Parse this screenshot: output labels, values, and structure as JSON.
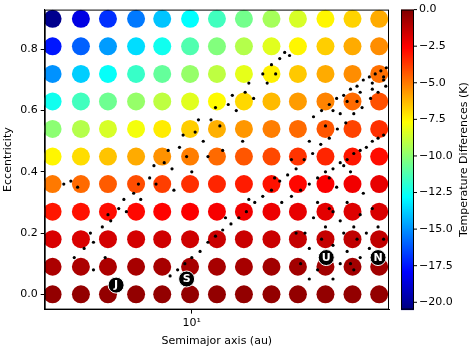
{
  "chart_data": {
    "type": "scatter",
    "x_label": "Semimajor axis (au)",
    "y_label": "Eccentricity",
    "log": "x",
    "grid": false,
    "xlim": [
      4.2,
      32
    ],
    "xticks": [
      {
        "value": 10,
        "label": "10¹"
      }
    ],
    "ylim": [
      -0.05,
      0.93
    ],
    "yticks": [
      {
        "value": 0,
        "label": "0.0"
      },
      {
        "value": 0.2,
        "label": "0.2"
      },
      {
        "value": 0.4,
        "label": "0.4"
      },
      {
        "value": 0.6,
        "label": "0.6"
      },
      {
        "value": 0.8,
        "label": "0.8"
      }
    ],
    "heatmap": {
      "marker": "circle",
      "x": [
        4.4,
        5.2,
        6.1,
        7.2,
        8.4,
        9.9,
        11.6,
        13.6,
        16,
        18.7,
        22,
        25.8,
        30.2
      ],
      "y": [
        0,
        0.09,
        0.18,
        0.27,
        0.36,
        0.45,
        0.54,
        0.63,
        0.72,
        0.81,
        0.9
      ],
      "values": [
        [
          -0.4,
          -0.4,
          -0.4,
          -0.4,
          -0.4,
          -0.4,
          -0.4,
          -0.4,
          -0.4,
          -0.4,
          -0.4,
          -0.4,
          -0.4
        ],
        [
          -0.9,
          -0.9,
          -0.9,
          -0.8,
          -0.8,
          -0.8,
          -0.8,
          -0.8,
          -0.7,
          -0.7,
          -0.7,
          -0.7,
          -0.7
        ],
        [
          -1.8,
          -1.8,
          -1.7,
          -1.7,
          -1.6,
          -1.6,
          -1.5,
          -1.5,
          -1.5,
          -1.4,
          -1.4,
          -1.3,
          -1.3
        ],
        [
          -3.0,
          -2.9,
          -2.8,
          -2.7,
          -2.6,
          -2.5,
          -2.4,
          -2.3,
          -2.2,
          -2.1,
          -2.0,
          -1.9,
          -1.8
        ],
        [
          -5.0,
          -4.7,
          -4.4,
          -4.1,
          -3.8,
          -3.5,
          -3.3,
          -3.1,
          -2.9,
          -2.7,
          -2.5,
          -2.3,
          -2.1
        ],
        [
          -7.5,
          -7.0,
          -6.5,
          -6.0,
          -5.5,
          -5.1,
          -4.7,
          -4.3,
          -4.0,
          -3.6,
          -3.3,
          -3.0,
          -2.8
        ],
        [
          -10.0,
          -9.2,
          -8.5,
          -7.9,
          -7.3,
          -6.7,
          -6.1,
          -5.6,
          -5.1,
          -4.7,
          -4.3,
          -3.9,
          -3.5
        ],
        [
          -12.5,
          -11.5,
          -10.6,
          -9.8,
          -9.0,
          -8.3,
          -7.6,
          -6.9,
          -6.3,
          -5.7,
          -5.2,
          -4.7,
          -4.2
        ],
        [
          -15.0,
          -13.8,
          -12.7,
          -11.7,
          -10.8,
          -9.8,
          -9.0,
          -8.2,
          -7.4,
          -6.6,
          -6.0,
          -5.4,
          -4.8
        ],
        [
          -17.5,
          -16.0,
          -14.8,
          -13.5,
          -12.5,
          -11.2,
          -10.2,
          -9.2,
          -8.3,
          -7.5,
          -6.7,
          -6.0,
          -5.4
        ],
        [
          -20.2,
          -18.5,
          -17.0,
          -15.5,
          -14.0,
          -12.8,
          -11.5,
          -10.5,
          -9.5,
          -8.5,
          -7.5,
          -6.8,
          -6.0
        ]
      ],
      "colorbar": {
        "label": "Temperature Differences (K)",
        "lim": [
          -20.5,
          0
        ],
        "ticks": [
          {
            "value": 0,
            "label": "0.0"
          },
          {
            "value": -2.5,
            "label": "−2.5"
          },
          {
            "value": -5,
            "label": "−5.0"
          },
          {
            "value": -7.5,
            "label": "−7.5"
          },
          {
            "value": -10,
            "label": "−10.0"
          },
          {
            "value": -12.5,
            "label": "−12.5"
          },
          {
            "value": -15,
            "label": "−15.0"
          },
          {
            "value": -17.5,
            "label": "−17.5"
          },
          {
            "value": -20,
            "label": "−20.0"
          }
        ]
      }
    },
    "series": [
      {
        "color": "#000000",
        "marker": "circle",
        "points": [
          [
            4.7,
            0.36
          ],
          [
            4.9,
            0.37
          ],
          [
            5.1,
            0.35
          ],
          [
            5.0,
            0.12
          ],
          [
            5.3,
            0.15
          ],
          [
            5.5,
            0.2
          ],
          [
            5.6,
            0.17
          ],
          [
            5.9,
            0.22
          ],
          [
            6.1,
            0.26
          ],
          [
            6.2,
            0.24
          ],
          [
            6.5,
            0.28
          ],
          [
            6.7,
            0.31
          ],
          [
            6.8,
            0.27
          ],
          [
            7.1,
            0.33
          ],
          [
            7.3,
            0.36
          ],
          [
            7.4,
            0.31
          ],
          [
            7.8,
            0.38
          ],
          [
            8.0,
            0.42
          ],
          [
            8.1,
            0.36
          ],
          [
            8.5,
            0.43
          ],
          [
            8.7,
            0.47
          ],
          [
            8.9,
            0.41
          ],
          [
            9.3,
            0.48
          ],
          [
            9.5,
            0.52
          ],
          [
            9.7,
            0.45
          ],
          [
            10.2,
            0.53
          ],
          [
            10.4,
            0.57
          ],
          [
            10.7,
            0.5
          ],
          [
            11.2,
            0.57
          ],
          [
            11.5,
            0.61
          ],
          [
            11.8,
            0.55
          ],
          [
            12.4,
            0.62
          ],
          [
            12.7,
            0.65
          ],
          [
            13.0,
            0.6
          ],
          [
            13.7,
            0.66
          ],
          [
            14.0,
            0.69
          ],
          [
            14.4,
            0.64
          ],
          [
            15.2,
            0.72
          ],
          [
            15.6,
            0.69
          ],
          [
            16.0,
            0.75
          ],
          [
            16.4,
            0.72
          ],
          [
            16.8,
            0.77
          ],
          [
            17.3,
            0.79
          ],
          [
            17.8,
            0.78
          ],
          [
            12.0,
            0.47
          ],
          [
            11.0,
            0.45
          ],
          [
            10.0,
            0.4
          ],
          [
            9.0,
            0.34
          ],
          [
            13.5,
            0.5
          ],
          [
            5.6,
            0.08
          ],
          [
            6.0,
            0.12
          ],
          [
            6.3,
            0.05
          ],
          [
            8.8,
            0.06
          ],
          [
            9.2,
            0.08
          ],
          [
            9.6,
            0.1
          ],
          [
            10.0,
            0.12
          ],
          [
            10.5,
            0.14
          ],
          [
            11.0,
            0.17
          ],
          [
            11.5,
            0.19
          ],
          [
            12.0,
            0.21
          ],
          [
            12.6,
            0.23
          ],
          [
            13.2,
            0.25
          ],
          [
            13.8,
            0.27
          ],
          [
            14.5,
            0.3
          ],
          [
            15.2,
            0.32
          ],
          [
            16.0,
            0.34
          ],
          [
            16.8,
            0.37
          ],
          [
            17.6,
            0.39
          ],
          [
            18.5,
            0.41
          ],
          [
            19.4,
            0.44
          ],
          [
            20.4,
            0.46
          ],
          [
            21.4,
            0.49
          ],
          [
            22.5,
            0.51
          ],
          [
            23.6,
            0.54
          ],
          [
            24.8,
            0.56
          ],
          [
            26.0,
            0.59
          ],
          [
            27.3,
            0.61
          ],
          [
            28.7,
            0.64
          ],
          [
            30.0,
            0.66
          ],
          [
            31.4,
            0.68
          ],
          [
            12.2,
            0.25
          ],
          [
            14.0,
            0.31
          ],
          [
            16.3,
            0.38
          ],
          [
            18.0,
            0.44
          ],
          [
            20.0,
            0.5
          ],
          [
            22.0,
            0.55
          ],
          [
            24.0,
            0.59
          ],
          [
            26.5,
            0.63
          ],
          [
            29.0,
            0.67
          ],
          [
            31.0,
            0.71
          ],
          [
            20.5,
            0.58
          ],
          [
            21.5,
            0.6
          ],
          [
            22.5,
            0.62
          ],
          [
            23.5,
            0.64
          ],
          [
            24.5,
            0.65
          ],
          [
            25.5,
            0.67
          ],
          [
            26.5,
            0.68
          ],
          [
            27.5,
            0.7
          ],
          [
            28.5,
            0.71
          ],
          [
            29.5,
            0.72
          ],
          [
            30.5,
            0.73
          ],
          [
            31.5,
            0.74
          ],
          [
            23,
            0.6
          ],
          [
            25,
            0.63
          ],
          [
            27,
            0.66
          ],
          [
            29,
            0.69
          ],
          [
            31,
            0.7
          ],
          [
            17,
            0.3
          ],
          [
            18,
            0.32
          ],
          [
            19,
            0.34
          ],
          [
            20,
            0.36
          ],
          [
            21,
            0.38
          ],
          [
            22,
            0.4
          ],
          [
            23,
            0.41
          ],
          [
            24,
            0.43
          ],
          [
            25,
            0.44
          ],
          [
            26,
            0.46
          ],
          [
            27,
            0.47
          ],
          [
            28,
            0.48
          ],
          [
            29,
            0.5
          ],
          [
            30,
            0.51
          ],
          [
            31,
            0.52
          ],
          [
            19,
            0.1
          ],
          [
            19.5,
            0.2
          ],
          [
            20,
            0.15
          ],
          [
            20.5,
            0.25
          ],
          [
            21,
            0.08
          ],
          [
            21,
            0.3
          ],
          [
            21.5,
            0.18
          ],
          [
            22,
            0.12
          ],
          [
            22,
            0.22
          ],
          [
            22.5,
            0.28
          ],
          [
            23,
            0.05
          ],
          [
            23,
            0.16
          ],
          [
            23.5,
            0.35
          ],
          [
            24,
            0.1
          ],
          [
            24,
            0.24
          ],
          [
            24.5,
            0.2
          ],
          [
            25,
            0.14
          ],
          [
            25,
            0.3
          ],
          [
            25.5,
            0.4
          ],
          [
            26,
            0.08
          ],
          [
            26,
            0.22
          ],
          [
            26.5,
            0.18
          ],
          [
            27,
            0.26
          ],
          [
            27,
            0.12
          ],
          [
            27.5,
            0.33
          ],
          [
            28,
            0.2
          ],
          [
            28.5,
            0.15
          ],
          [
            29,
            0.28
          ],
          [
            30,
            0.22
          ],
          [
            31,
            0.18
          ],
          [
            22.5,
            0.38
          ],
          [
            24.5,
            0.42
          ],
          [
            20,
            0.05
          ],
          [
            18.5,
            0.2
          ],
          [
            23,
            0.27
          ],
          [
            25.5,
            0.1
          ]
        ]
      }
    ],
    "annotations": [
      {
        "text": "J",
        "x": 6.4,
        "y": 0.03
      },
      {
        "text": "S",
        "x": 9.7,
        "y": 0.05
      },
      {
        "text": "U",
        "x": 22.1,
        "y": 0.12
      },
      {
        "text": "N",
        "x": 30,
        "y": 0.12
      }
    ]
  }
}
